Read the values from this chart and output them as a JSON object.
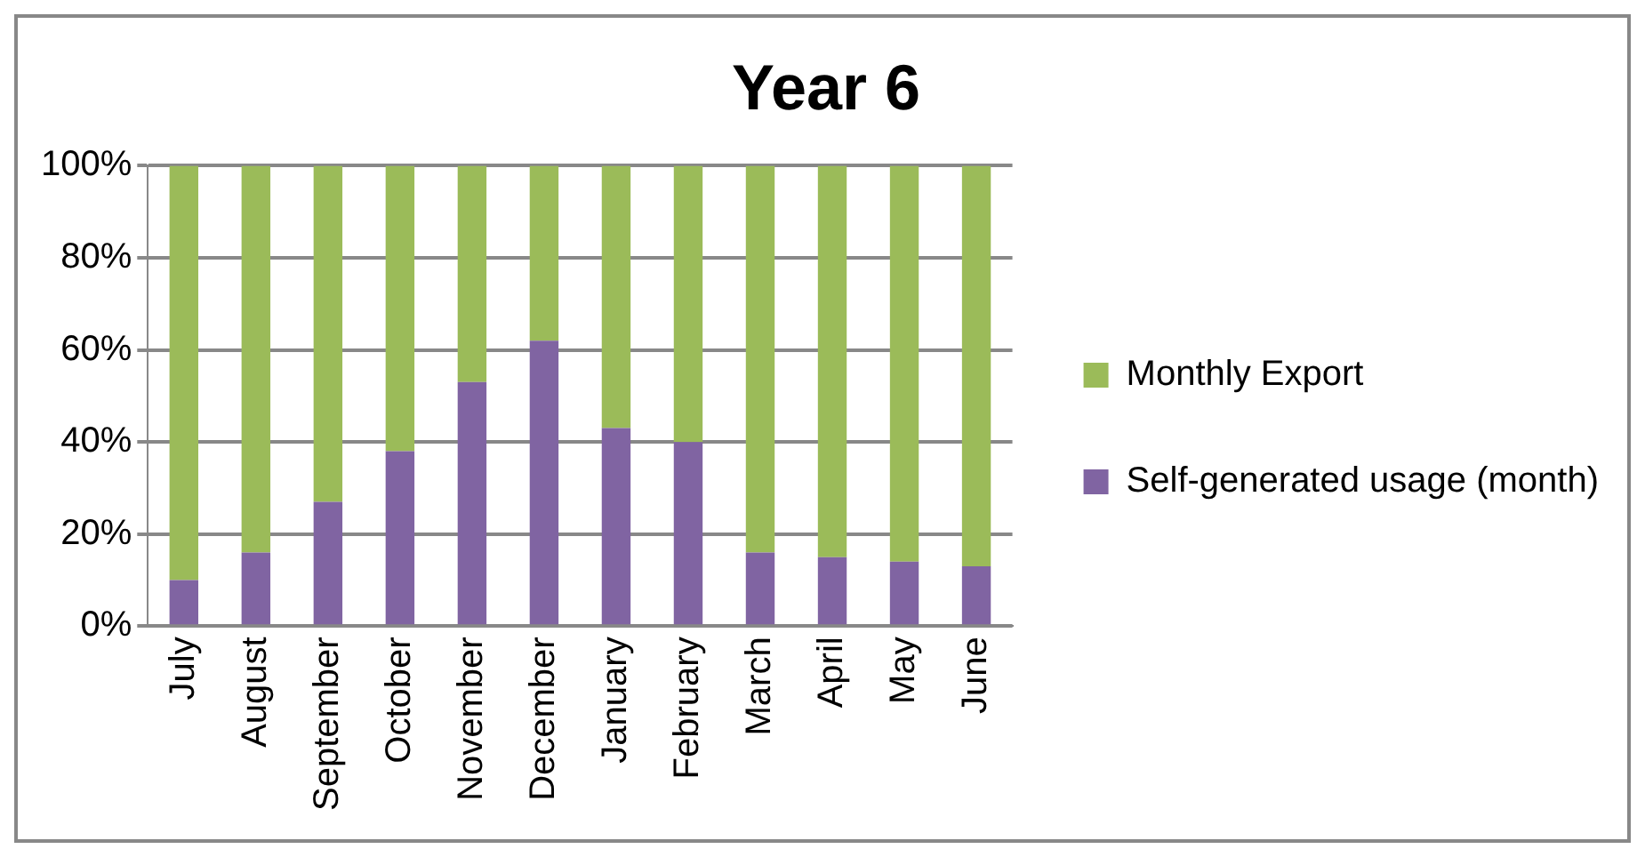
{
  "chart_data": {
    "type": "bar",
    "title": "Year 6",
    "stacked": true,
    "categories": [
      "July",
      "August",
      "September",
      "October",
      "November",
      "December",
      "January",
      "February",
      "March",
      "April",
      "May",
      "June"
    ],
    "series": [
      {
        "name": "Self-generated usage (month)",
        "color": "#8064a2",
        "values": [
          10,
          16,
          27,
          38,
          53,
          62,
          43,
          40,
          16,
          15,
          14,
          13
        ]
      },
      {
        "name": "Monthly Export",
        "color": "#9bbb59",
        "values": [
          90,
          84,
          73,
          62,
          47,
          38,
          57,
          60,
          84,
          85,
          86,
          87
        ]
      }
    ],
    "ylim": [
      0,
      100
    ],
    "yticks": [
      {
        "value": 0,
        "label": "0%"
      },
      {
        "value": 20,
        "label": "20%"
      },
      {
        "value": 40,
        "label": "40%"
      },
      {
        "value": 60,
        "label": "60%"
      },
      {
        "value": 80,
        "label": "80%"
      },
      {
        "value": 100,
        "label": "100%"
      }
    ],
    "grid": "y",
    "legend": "right"
  }
}
